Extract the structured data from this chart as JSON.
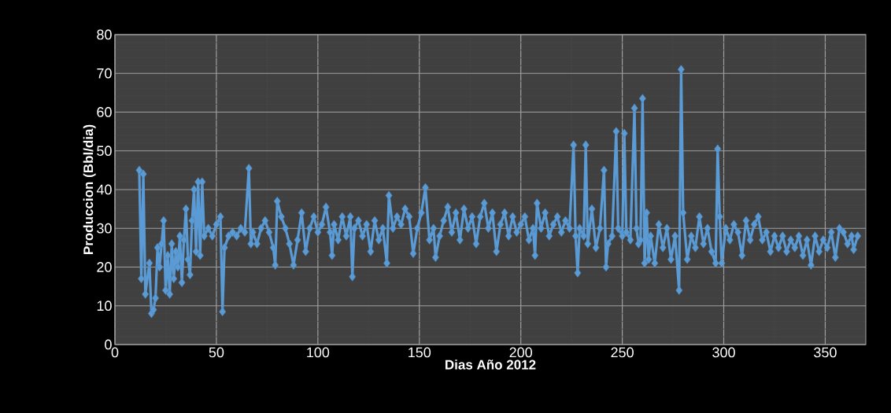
{
  "chart_data": {
    "type": "line",
    "xlabel": "Dias Año 2012",
    "ylabel": "Produccion (Bbl/dia)",
    "xlim": [
      0,
      370
    ],
    "ylim": [
      0,
      80
    ],
    "xticks": [
      0,
      50,
      100,
      150,
      200,
      250,
      300,
      350
    ],
    "yticks": [
      0,
      10,
      20,
      30,
      40,
      50,
      60,
      70,
      80
    ],
    "grid": true,
    "marker": "diamond",
    "line_style": "solid",
    "legend": false,
    "series": [
      {
        "color": "#5b9bd5",
        "x": [
          12,
          13,
          14,
          15,
          17,
          18,
          19,
          20,
          21,
          22,
          23,
          24,
          25,
          26,
          27,
          28,
          29,
          30,
          31,
          32,
          33,
          34,
          35,
          36,
          37,
          38,
          39,
          40,
          41,
          42,
          43,
          44,
          46,
          48,
          50,
          52,
          53,
          54,
          56,
          58,
          60,
          62,
          64,
          66,
          67,
          68,
          70,
          72,
          74,
          76,
          78,
          79,
          80,
          82,
          84,
          86,
          88,
          90,
          92,
          94,
          96,
          98,
          100,
          102,
          104,
          106,
          107,
          108,
          110,
          112,
          114,
          116,
          117,
          118,
          120,
          122,
          124,
          126,
          128,
          130,
          132,
          134,
          135,
          137,
          139,
          141,
          143,
          145,
          147,
          149,
          151,
          153,
          155,
          157,
          158,
          160,
          162,
          164,
          166,
          168,
          170,
          172,
          174,
          176,
          178,
          180,
          182,
          184,
          186,
          188,
          190,
          192,
          194,
          196,
          198,
          200,
          202,
          204,
          206,
          207,
          208,
          210,
          212,
          214,
          216,
          218,
          220,
          222,
          224,
          226,
          227,
          228,
          229,
          231,
          232,
          233,
          235,
          237,
          239,
          241,
          242,
          243,
          245,
          247,
          248,
          250,
          251,
          252,
          254,
          256,
          257,
          258,
          259,
          260,
          261,
          262,
          263,
          264,
          266,
          268,
          270,
          272,
          274,
          276,
          278,
          279,
          280,
          282,
          284,
          286,
          288,
          290,
          292,
          294,
          296,
          297,
          298,
          299,
          301,
          303,
          305,
          307,
          309,
          311,
          313,
          315,
          317,
          319,
          321,
          323,
          325,
          327,
          329,
          331,
          333,
          335,
          337,
          339,
          341,
          343,
          345,
          347,
          349,
          351,
          353,
          355,
          357,
          359,
          361,
          363,
          364,
          366
        ],
        "values": [
          45,
          17,
          44,
          13,
          21,
          8,
          9,
          12,
          25,
          20,
          26,
          32,
          14,
          23,
          13,
          26,
          17,
          24,
          20,
          28,
          16,
          27,
          35,
          22,
          18,
          32,
          40,
          24,
          42,
          23,
          42,
          28,
          30,
          28,
          31,
          33,
          8.5,
          25,
          28,
          29,
          28,
          30,
          29,
          45.5,
          26,
          29,
          26,
          30,
          32,
          29,
          25,
          20.5,
          37,
          33,
          30,
          26,
          20.5,
          27,
          34,
          24,
          30,
          33,
          29,
          31,
          35.5,
          29,
          23,
          31,
          27,
          33,
          28,
          33,
          17.5,
          30,
          32,
          28,
          31,
          24,
          32,
          27,
          30,
          21,
          38.5,
          30,
          33,
          31,
          35,
          33,
          23.5,
          30,
          34,
          40.5,
          27,
          30,
          22.5,
          28,
          32,
          35.5,
          29,
          34,
          27,
          35,
          30,
          33,
          26,
          33,
          36.5,
          30,
          34,
          24,
          31,
          34,
          28,
          33,
          29,
          31,
          33,
          27,
          30,
          23,
          36.5,
          30,
          34,
          28,
          31,
          33,
          29,
          32,
          30,
          51.5,
          28,
          18.5,
          30,
          28,
          51.5,
          26,
          35,
          25,
          30,
          45,
          20,
          26,
          28,
          55,
          30,
          28,
          54.5,
          29,
          27,
          61,
          30,
          26,
          27,
          63.5,
          21,
          34,
          22,
          28,
          21,
          31,
          25,
          30,
          22,
          28,
          14,
          71,
          34,
          22,
          28,
          25,
          33,
          26,
          30,
          24,
          21,
          50.5,
          33,
          21,
          30,
          27,
          31,
          29,
          23,
          32,
          27,
          31,
          33,
          27,
          29,
          24,
          28,
          25,
          28,
          24,
          27,
          25,
          28,
          23,
          27,
          20.5,
          28,
          24,
          27,
          25,
          29,
          22.5,
          30,
          29,
          26,
          28,
          24.5,
          28
        ]
      }
    ]
  }
}
